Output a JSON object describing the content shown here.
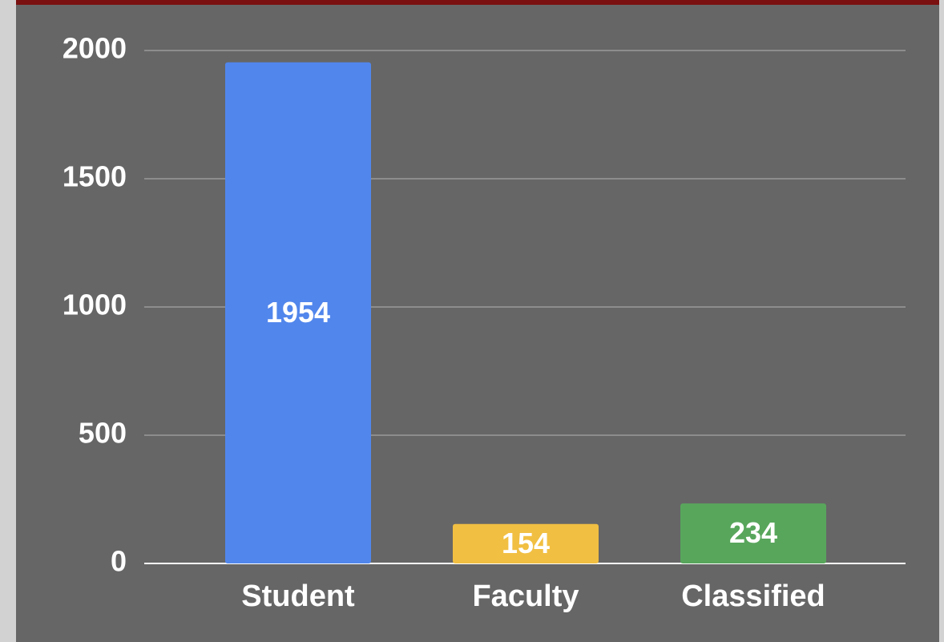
{
  "chart_data": {
    "type": "bar",
    "categories": [
      "Student",
      "Faculty",
      "Classified"
    ],
    "values": [
      1954,
      154,
      234
    ],
    "colors": [
      "#5186ec",
      "#f1bf42",
      "#58a65c"
    ],
    "ylim": [
      0,
      2000
    ],
    "yticks": [
      0,
      500,
      1000,
      1500,
      2000
    ],
    "grid": true,
    "data_labels": true
  }
}
